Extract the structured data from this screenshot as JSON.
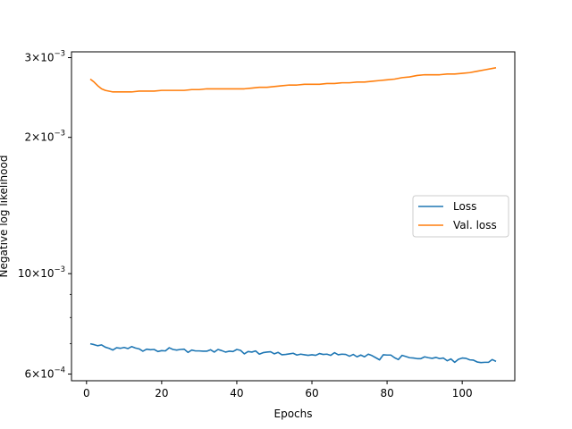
{
  "chart_data": {
    "type": "line",
    "xlabel": "Epochs",
    "ylabel": "Negative log likelihood",
    "xlim": [
      -4,
      114
    ],
    "ylim": [
      0.00058,
      0.00309
    ],
    "yscale": "log",
    "grid": false,
    "legend_position": "center-right",
    "x_ticks": [
      {
        "value": 0,
        "label": "0"
      },
      {
        "value": 20,
        "label": "20"
      },
      {
        "value": 40,
        "label": "40"
      },
      {
        "value": 60,
        "label": "60"
      },
      {
        "value": 80,
        "label": "80"
      },
      {
        "value": 100,
        "label": "100"
      }
    ],
    "y_major_ticks": [
      {
        "value": 0.0006,
        "base": "6",
        "sup": "−4"
      },
      {
        "value": 0.001,
        "base": "10",
        "sup": "−3"
      },
      {
        "value": 0.002,
        "base": "2",
        "sup": "−3"
      },
      {
        "value": 0.003,
        "base": "3",
        "sup": "−3"
      }
    ],
    "y_minor_ticks": [
      0.0007,
      0.0008,
      0.0009
    ],
    "series": [
      {
        "name": "Loss",
        "color": "#1f77b4",
        "x": [
          1,
          2,
          3,
          4,
          5,
          6,
          7,
          8,
          9,
          10,
          11,
          12,
          13,
          14,
          15,
          16,
          17,
          18,
          19,
          20,
          21,
          22,
          23,
          24,
          25,
          26,
          27,
          28,
          29,
          30,
          31,
          32,
          33,
          34,
          35,
          36,
          37,
          38,
          39,
          40,
          41,
          42,
          43,
          44,
          45,
          46,
          47,
          48,
          49,
          50,
          51,
          52,
          53,
          54,
          55,
          56,
          57,
          58,
          59,
          60,
          61,
          62,
          63,
          64,
          65,
          66,
          67,
          68,
          69,
          70,
          71,
          72,
          73,
          74,
          75,
          76,
          77,
          78,
          79,
          80,
          81,
          82,
          83,
          84,
          85,
          86,
          87,
          88,
          89,
          90,
          91,
          92,
          93,
          94,
          95,
          96,
          97,
          98,
          99,
          100,
          101,
          102,
          103,
          104,
          105,
          106,
          107,
          108,
          109
        ],
        "y": [
          0.0007,
          0.000697,
          0.000693,
          0.000696,
          0.000688,
          0.000684,
          0.000678,
          0.000686,
          0.000684,
          0.000687,
          0.000683,
          0.00069,
          0.000685,
          0.000682,
          0.000674,
          0.000681,
          0.000679,
          0.00068,
          0.000673,
          0.000676,
          0.000675,
          0.000686,
          0.00068,
          0.000678,
          0.00068,
          0.000681,
          0.00067,
          0.000678,
          0.000675,
          0.000675,
          0.000674,
          0.000674,
          0.000679,
          0.000671,
          0.00068,
          0.000676,
          0.000671,
          0.000674,
          0.000673,
          0.00068,
          0.000677,
          0.000665,
          0.000673,
          0.000671,
          0.000675,
          0.000664,
          0.000669,
          0.000671,
          0.000672,
          0.000665,
          0.00067,
          0.000662,
          0.000663,
          0.000665,
          0.000667,
          0.000661,
          0.000664,
          0.000662,
          0.00066,
          0.000662,
          0.00066,
          0.000666,
          0.000663,
          0.000664,
          0.00066,
          0.000669,
          0.000662,
          0.000664,
          0.000663,
          0.000657,
          0.000663,
          0.000655,
          0.000661,
          0.000655,
          0.000664,
          0.000659,
          0.000652,
          0.000645,
          0.000662,
          0.000661,
          0.000661,
          0.000652,
          0.000646,
          0.00066,
          0.000656,
          0.000652,
          0.000651,
          0.000649,
          0.000649,
          0.000655,
          0.000652,
          0.00065,
          0.000653,
          0.000649,
          0.000651,
          0.000642,
          0.000648,
          0.000637,
          0.000647,
          0.000651,
          0.00065,
          0.000645,
          0.000644,
          0.000638,
          0.000636,
          0.000637,
          0.000637,
          0.000646,
          0.00064
        ]
      },
      {
        "name": "Val. loss",
        "color": "#ff7f0e",
        "x": [
          1,
          2,
          3,
          4,
          5,
          6,
          7,
          8,
          9,
          10,
          12,
          14,
          16,
          18,
          20,
          22,
          24,
          26,
          28,
          30,
          32,
          34,
          36,
          38,
          40,
          42,
          44,
          46,
          48,
          50,
          52,
          54,
          56,
          58,
          60,
          62,
          64,
          66,
          68,
          70,
          72,
          74,
          76,
          78,
          80,
          82,
          84,
          86,
          88,
          90,
          92,
          94,
          96,
          98,
          100,
          102,
          104,
          106,
          108,
          109
        ],
        "y": [
          0.00269,
          0.00265,
          0.0026,
          0.00256,
          0.00254,
          0.00253,
          0.00252,
          0.00252,
          0.00252,
          0.00252,
          0.00252,
          0.00253,
          0.00253,
          0.00253,
          0.00254,
          0.00254,
          0.00254,
          0.00254,
          0.00255,
          0.00255,
          0.00256,
          0.00256,
          0.00256,
          0.00256,
          0.00256,
          0.00256,
          0.00257,
          0.00258,
          0.00258,
          0.00259,
          0.0026,
          0.00261,
          0.00261,
          0.00262,
          0.00262,
          0.00262,
          0.00263,
          0.00263,
          0.00264,
          0.00264,
          0.00265,
          0.00265,
          0.00266,
          0.00267,
          0.00268,
          0.00269,
          0.00271,
          0.00272,
          0.00274,
          0.00275,
          0.00275,
          0.00275,
          0.00276,
          0.00276,
          0.00277,
          0.00278,
          0.0028,
          0.00282,
          0.00284,
          0.00285
        ]
      }
    ]
  }
}
